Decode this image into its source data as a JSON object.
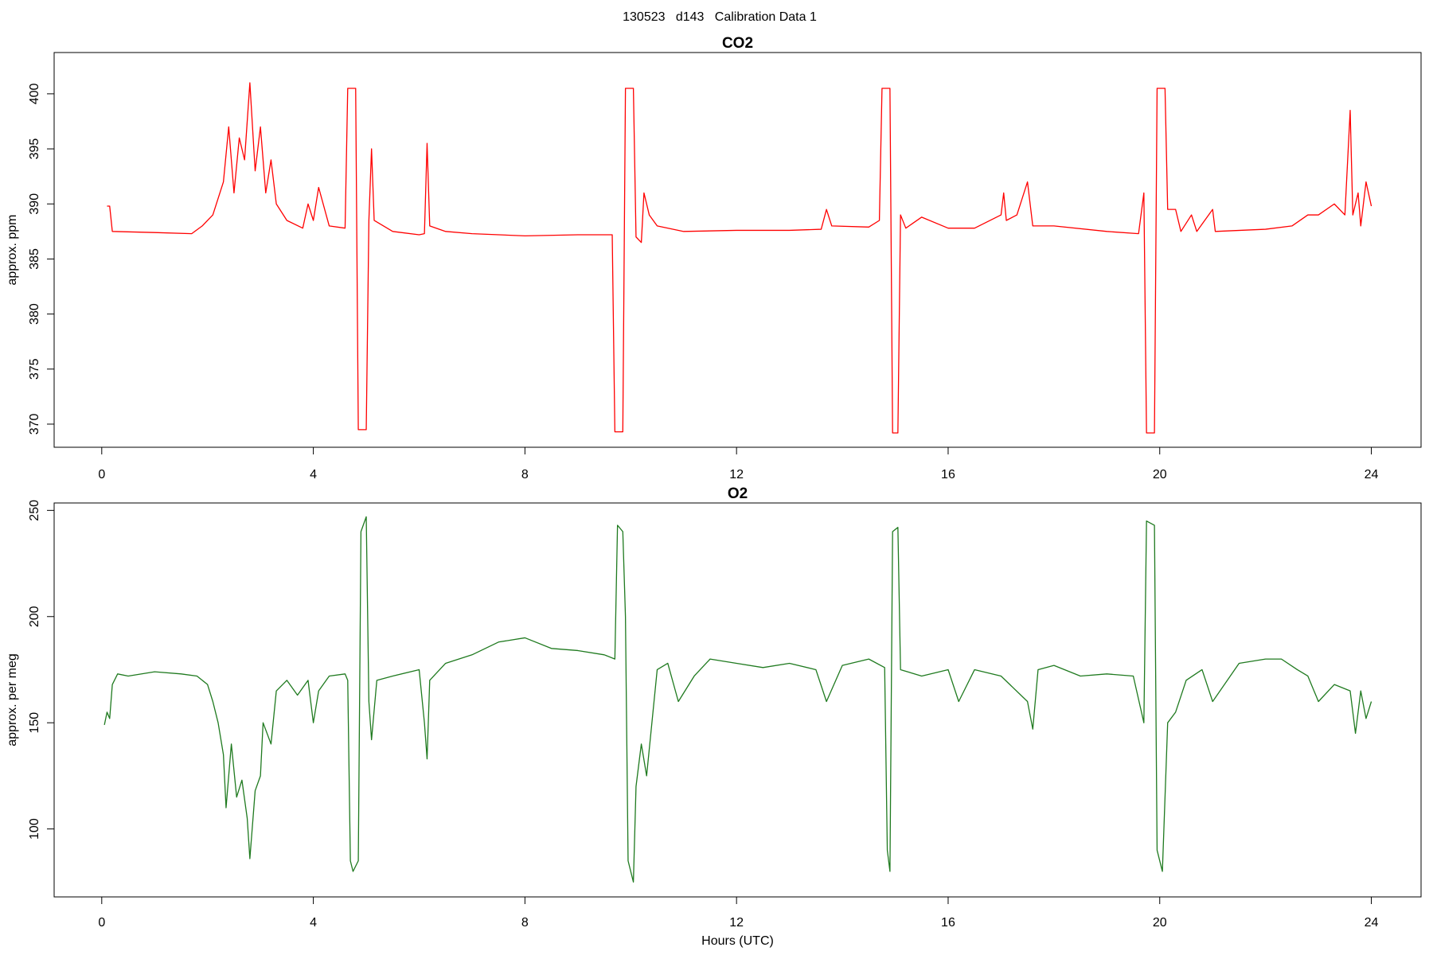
{
  "suptitle": "130523   d143   Calibration Data 1",
  "chart_data": [
    {
      "type": "line",
      "title": "CO2",
      "ylabel": "approx. ppm",
      "x": [
        0.1,
        0.15,
        0.2,
        1,
        1.7,
        1.9,
        2.1,
        2.3,
        2.4,
        2.5,
        2.6,
        2.7,
        2.8,
        2.9,
        3.0,
        3.1,
        3.2,
        3.3,
        3.5,
        3.8,
        3.9,
        4.0,
        4.1,
        4.3,
        4.6,
        4.65,
        4.8,
        4.85,
        5.0,
        5.05,
        5.1,
        5.15,
        5.5,
        6.0,
        6.1,
        6.15,
        6.2,
        6.5,
        7,
        8,
        9,
        9.65,
        9.7,
        9.85,
        9.9,
        10.05,
        10.1,
        10.2,
        10.25,
        10.35,
        10.5,
        11,
        12,
        13,
        13.6,
        13.7,
        13.8,
        14.5,
        14.7,
        14.75,
        14.9,
        14.95,
        15.05,
        15.1,
        15.2,
        15.5,
        16,
        16.5,
        17,
        17.05,
        17.1,
        17.3,
        17.5,
        17.6,
        18,
        19,
        19.6,
        19.7,
        19.75,
        19.9,
        19.95,
        20.1,
        20.15,
        20.3,
        20.4,
        20.6,
        20.7,
        21,
        21.05,
        22,
        22.5,
        22.8,
        23,
        23.3,
        23.5,
        23.6,
        23.65,
        23.75,
        23.8,
        23.9,
        24
      ],
      "series": [
        {
          "color": "#ff0000",
          "values": [
            389.8,
            389.8,
            387.5,
            387.4,
            387.3,
            388,
            389,
            392,
            397,
            391,
            396,
            394,
            401,
            393,
            397,
            391,
            394,
            390,
            388.5,
            387.8,
            390,
            388.5,
            391.5,
            388,
            387.8,
            400.5,
            400.5,
            369.5,
            369.5,
            388.5,
            395,
            388.5,
            387.5,
            387.2,
            387.3,
            395.5,
            388,
            387.5,
            387.3,
            387.1,
            387.2,
            387.2,
            369.3,
            369.3,
            400.5,
            400.5,
            387,
            386.5,
            391,
            389,
            388,
            387.5,
            387.6,
            387.6,
            387.7,
            389.5,
            388,
            387.9,
            388.5,
            400.5,
            400.5,
            369.2,
            369.2,
            389,
            387.8,
            388.8,
            387.8,
            387.8,
            389,
            391,
            388.5,
            389,
            392,
            388,
            388,
            387.5,
            387.3,
            391,
            369.2,
            369.2,
            400.5,
            400.5,
            389.5,
            389.5,
            387.5,
            389,
            387.5,
            389.5,
            387.5,
            387.7,
            388,
            389,
            389,
            390,
            389,
            398.5,
            389,
            391,
            388,
            392,
            389.8
          ]
        }
      ],
      "xlim": [
        -0.9,
        24.94
      ],
      "xticks": [
        0,
        4,
        8,
        12,
        16,
        20,
        24
      ],
      "ylim": [
        367.9,
        403.75
      ],
      "yticks": [
        370,
        375,
        380,
        385,
        390,
        395,
        400
      ]
    },
    {
      "type": "line",
      "title": "O2",
      "ylabel": "approx. per meg",
      "xlabel": "Hours (UTC)",
      "x": [
        0.05,
        0.1,
        0.15,
        0.2,
        0.3,
        0.5,
        1,
        1.5,
        1.8,
        2.0,
        2.1,
        2.2,
        2.3,
        2.35,
        2.45,
        2.55,
        2.65,
        2.75,
        2.8,
        2.9,
        3.0,
        3.05,
        3.2,
        3.3,
        3.5,
        3.7,
        3.9,
        4.0,
        4.1,
        4.3,
        4.6,
        4.65,
        4.7,
        4.75,
        4.85,
        4.9,
        5.0,
        5.05,
        5.1,
        5.2,
        5.5,
        6.0,
        6.1,
        6.15,
        6.2,
        6.5,
        7,
        7.5,
        8,
        8.5,
        9,
        9.5,
        9.7,
        9.75,
        9.85,
        9.9,
        9.95,
        10.05,
        10.1,
        10.2,
        10.3,
        10.4,
        10.5,
        10.7,
        10.9,
        11.2,
        11.5,
        12,
        12.5,
        13,
        13.5,
        13.7,
        14,
        14.5,
        14.8,
        14.85,
        14.9,
        14.95,
        15.05,
        15.1,
        15.5,
        16,
        16.2,
        16.5,
        17,
        17.5,
        17.6,
        17.7,
        18,
        18.5,
        19,
        19.5,
        19.7,
        19.75,
        19.9,
        19.95,
        20.05,
        20.15,
        20.3,
        20.5,
        20.8,
        21.0,
        21.5,
        22,
        22.3,
        22.6,
        22.8,
        23,
        23.3,
        23.6,
        23.7,
        23.8,
        23.9,
        24
      ],
      "series": [
        {
          "color": "#1f7a1f",
          "values": [
            149,
            155,
            152,
            168,
            173,
            172,
            174,
            173,
            172,
            168,
            160,
            150,
            135,
            110,
            140,
            115,
            123,
            105,
            86,
            118,
            125,
            150,
            140,
            165,
            170,
            163,
            170,
            150,
            165,
            172,
            173,
            170,
            85,
            80,
            85,
            240,
            247,
            160,
            142,
            170,
            172,
            175,
            150,
            133,
            170,
            178,
            182,
            188,
            190,
            185,
            184,
            182,
            180,
            243,
            240,
            200,
            85,
            75,
            120,
            140,
            125,
            150,
            175,
            178,
            160,
            172,
            180,
            178,
            176,
            178,
            175,
            160,
            177,
            180,
            176,
            90,
            80,
            240,
            242,
            175,
            172,
            175,
            160,
            175,
            172,
            160,
            147,
            175,
            177,
            172,
            173,
            172,
            150,
            245,
            243,
            90,
            80,
            150,
            155,
            170,
            175,
            160,
            178,
            180,
            180,
            175,
            172,
            160,
            168,
            165,
            145,
            165,
            152,
            160
          ]
        }
      ],
      "xlim": [
        -0.9,
        24.94
      ],
      "xticks": [
        0,
        4,
        8,
        12,
        16,
        20,
        24
      ],
      "ylim": [
        68,
        253.5
      ],
      "yticks": [
        100,
        150,
        200,
        250
      ]
    }
  ]
}
